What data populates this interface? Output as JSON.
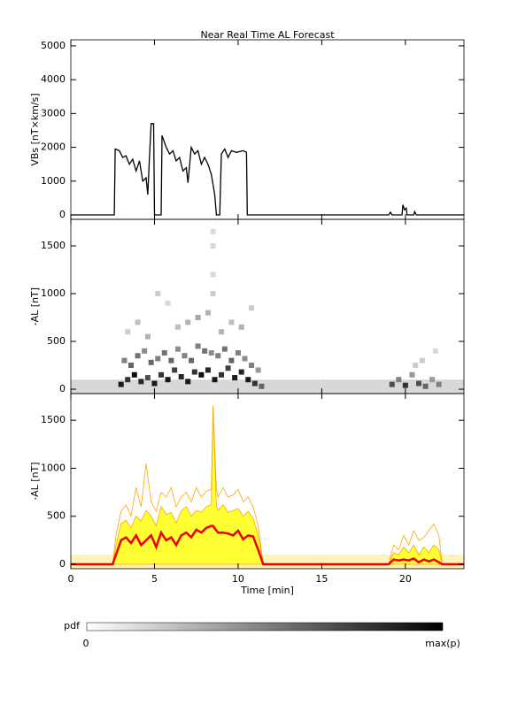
{
  "chart_data": [
    {
      "type": "line",
      "title": "Near Real Time AL Forecast",
      "y_label": "VBs [nT×km/s]",
      "color": "#000000",
      "xlim": [
        0,
        23.5
      ],
      "ylim": [
        -130,
        5180
      ],
      "yticks": [
        0,
        1000,
        2000,
        3000,
        4000,
        5000
      ],
      "x": [
        0,
        2.6,
        2.65,
        2.9,
        3.1,
        3.3,
        3.5,
        3.7,
        3.9,
        4.1,
        4.3,
        4.5,
        4.6,
        4.7,
        4.8,
        4.95,
        5.0,
        5.4,
        5.45,
        5.7,
        5.9,
        6.1,
        6.3,
        6.5,
        6.7,
        6.9,
        7.0,
        7.2,
        7.4,
        7.6,
        7.8,
        8.0,
        8.2,
        8.4,
        8.6,
        8.7,
        8.9,
        9.0,
        9.2,
        9.4,
        9.6,
        9.9,
        10.3,
        10.5,
        10.55,
        19.0,
        19.1,
        19.2,
        19.8,
        19.85,
        19.95,
        20.05,
        20.1,
        20.5,
        20.55,
        20.65,
        23.5
      ],
      "values": [
        0,
        0,
        1950,
        1900,
        1700,
        1750,
        1500,
        1650,
        1300,
        1600,
        1000,
        1100,
        600,
        1700,
        2700,
        2700,
        0,
        0,
        2350,
        2000,
        1800,
        1900,
        1600,
        1700,
        1300,
        1400,
        950,
        2000,
        1800,
        1900,
        1500,
        1700,
        1500,
        1200,
        600,
        0,
        0,
        1800,
        1950,
        1700,
        1900,
        1850,
        1900,
        1850,
        0,
        0,
        80,
        0,
        0,
        300,
        150,
        200,
        0,
        0,
        100,
        0,
        0
      ]
    },
    {
      "type": "heatmap",
      "y_label": "-AL [nT]",
      "xlim": [
        0,
        23.5
      ],
      "ylim": [
        -46,
        1778
      ],
      "yticks": [
        0,
        500,
        1000,
        1500
      ],
      "baseline": 100,
      "cells": {
        "x": [
          3.0,
          3.4,
          3.8,
          4.2,
          4.6,
          5.0,
          5.4,
          5.8,
          6.2,
          6.6,
          7.0,
          7.4,
          7.8,
          8.2,
          8.6,
          9.0,
          9.4,
          9.8,
          10.2,
          10.6,
          11.0,
          11.4,
          3.2,
          3.6,
          4.0,
          4.4,
          4.8,
          5.2,
          5.6,
          6.0,
          6.4,
          6.8,
          7.2,
          7.6,
          8.0,
          8.4,
          8.8,
          9.2,
          9.6,
          10.0,
          10.4,
          10.8,
          11.2,
          3.4,
          4.0,
          4.6,
          5.2,
          5.8,
          6.4,
          7.0,
          7.6,
          8.2,
          8.5,
          8.5,
          8.5,
          8.5,
          9.0,
          9.6,
          10.2,
          10.8,
          19.2,
          19.6,
          20.0,
          20.4,
          20.8,
          21.2,
          21.6,
          22.0,
          20.6,
          21.0,
          21.8
        ],
        "y": [
          50,
          100,
          150,
          80,
          120,
          60,
          150,
          100,
          200,
          130,
          80,
          180,
          150,
          200,
          100,
          150,
          220,
          120,
          180,
          100,
          60,
          30,
          300,
          250,
          350,
          400,
          280,
          320,
          380,
          300,
          420,
          350,
          300,
          450,
          400,
          380,
          350,
          420,
          300,
          380,
          320,
          250,
          200,
          600,
          700,
          550,
          1000,
          900,
          650,
          700,
          750,
          800,
          1000,
          1200,
          1500,
          1650,
          600,
          700,
          650,
          850,
          50,
          100,
          40,
          150,
          60,
          30,
          100,
          50,
          250,
          300,
          400
        ],
        "p": [
          0.9,
          0.8,
          0.95,
          0.85,
          0.7,
          0.9,
          0.8,
          0.9,
          0.75,
          0.85,
          0.9,
          0.8,
          0.95,
          0.85,
          0.9,
          0.8,
          0.75,
          0.9,
          0.85,
          0.9,
          0.8,
          0.6,
          0.5,
          0.6,
          0.55,
          0.45,
          0.6,
          0.5,
          0.55,
          0.6,
          0.45,
          0.5,
          0.6,
          0.5,
          0.55,
          0.45,
          0.5,
          0.55,
          0.6,
          0.5,
          0.45,
          0.5,
          0.4,
          0.2,
          0.25,
          0.3,
          0.2,
          0.15,
          0.25,
          0.3,
          0.35,
          0.3,
          0.2,
          0.15,
          0.15,
          0.15,
          0.3,
          0.25,
          0.3,
          0.2,
          0.7,
          0.5,
          0.8,
          0.4,
          0.7,
          0.6,
          0.4,
          0.5,
          0.2,
          0.2,
          0.15
        ]
      }
    },
    {
      "type": "band",
      "y_label": "-AL [nT]",
      "x_label": "Time [min]",
      "xlim": [
        0,
        23.5
      ],
      "ylim": [
        -46,
        1778
      ],
      "xticks": [
        0,
        5,
        10,
        15,
        20
      ],
      "yticks": [
        0,
        500,
        1000,
        1500
      ],
      "baseline": 100,
      "baseline_color": "#fff4b8",
      "x": [
        0,
        2.5,
        2.7,
        3.0,
        3.3,
        3.6,
        3.9,
        4.2,
        4.5,
        4.8,
        5.1,
        5.4,
        5.7,
        6.0,
        6.3,
        6.6,
        6.9,
        7.2,
        7.5,
        7.8,
        8.1,
        8.4,
        8.5,
        8.7,
        8.8,
        9.1,
        9.4,
        9.7,
        10.0,
        10.3,
        10.6,
        10.9,
        11.2,
        11.5,
        11.8,
        12.1,
        19.0,
        19.3,
        19.6,
        19.9,
        20.2,
        20.5,
        20.8,
        21.1,
        21.4,
        21.7,
        22.0,
        22.2,
        23.5
      ],
      "series": [
        {
          "type": "area",
          "color": "#ffff33",
          "edge": "#ffa500",
          "values": [
            0,
            0,
            200,
            420,
            460,
            380,
            500,
            450,
            560,
            500,
            400,
            600,
            520,
            540,
            430,
            560,
            600,
            500,
            560,
            540,
            600,
            620,
            1650,
            600,
            560,
            620,
            540,
            560,
            580,
            500,
            550,
            480,
            300,
            0,
            0,
            0,
            0,
            120,
            100,
            180,
            120,
            200,
            100,
            180,
            120,
            200,
            150,
            0,
            0
          ]
        },
        {
          "type": "line",
          "color": "#ffa500",
          "width": 0.8,
          "values": [
            0,
            0,
            300,
            550,
            620,
            500,
            800,
            600,
            1050,
            650,
            550,
            750,
            700,
            800,
            600,
            700,
            750,
            650,
            800,
            700,
            760,
            780,
            1650,
            780,
            700,
            800,
            700,
            720,
            780,
            650,
            700,
            600,
            400,
            0,
            0,
            0,
            0,
            200,
            150,
            300,
            200,
            350,
            250,
            280,
            350,
            420,
            300,
            0,
            0
          ]
        },
        {
          "type": "line",
          "color": "#ee0000",
          "width": 2.5,
          "values": [
            0,
            0,
            100,
            250,
            280,
            220,
            300,
            200,
            250,
            300,
            180,
            330,
            250,
            280,
            200,
            300,
            330,
            280,
            360,
            330,
            380,
            400,
            400,
            350,
            330,
            330,
            320,
            300,
            350,
            260,
            300,
            290,
            150,
            0,
            0,
            0,
            0,
            50,
            40,
            50,
            40,
            60,
            20,
            50,
            30,
            50,
            20,
            0,
            0
          ]
        }
      ]
    }
  ],
  "colorbar": {
    "label": "pdf",
    "min_label": "0",
    "max_label": "max(p)"
  }
}
